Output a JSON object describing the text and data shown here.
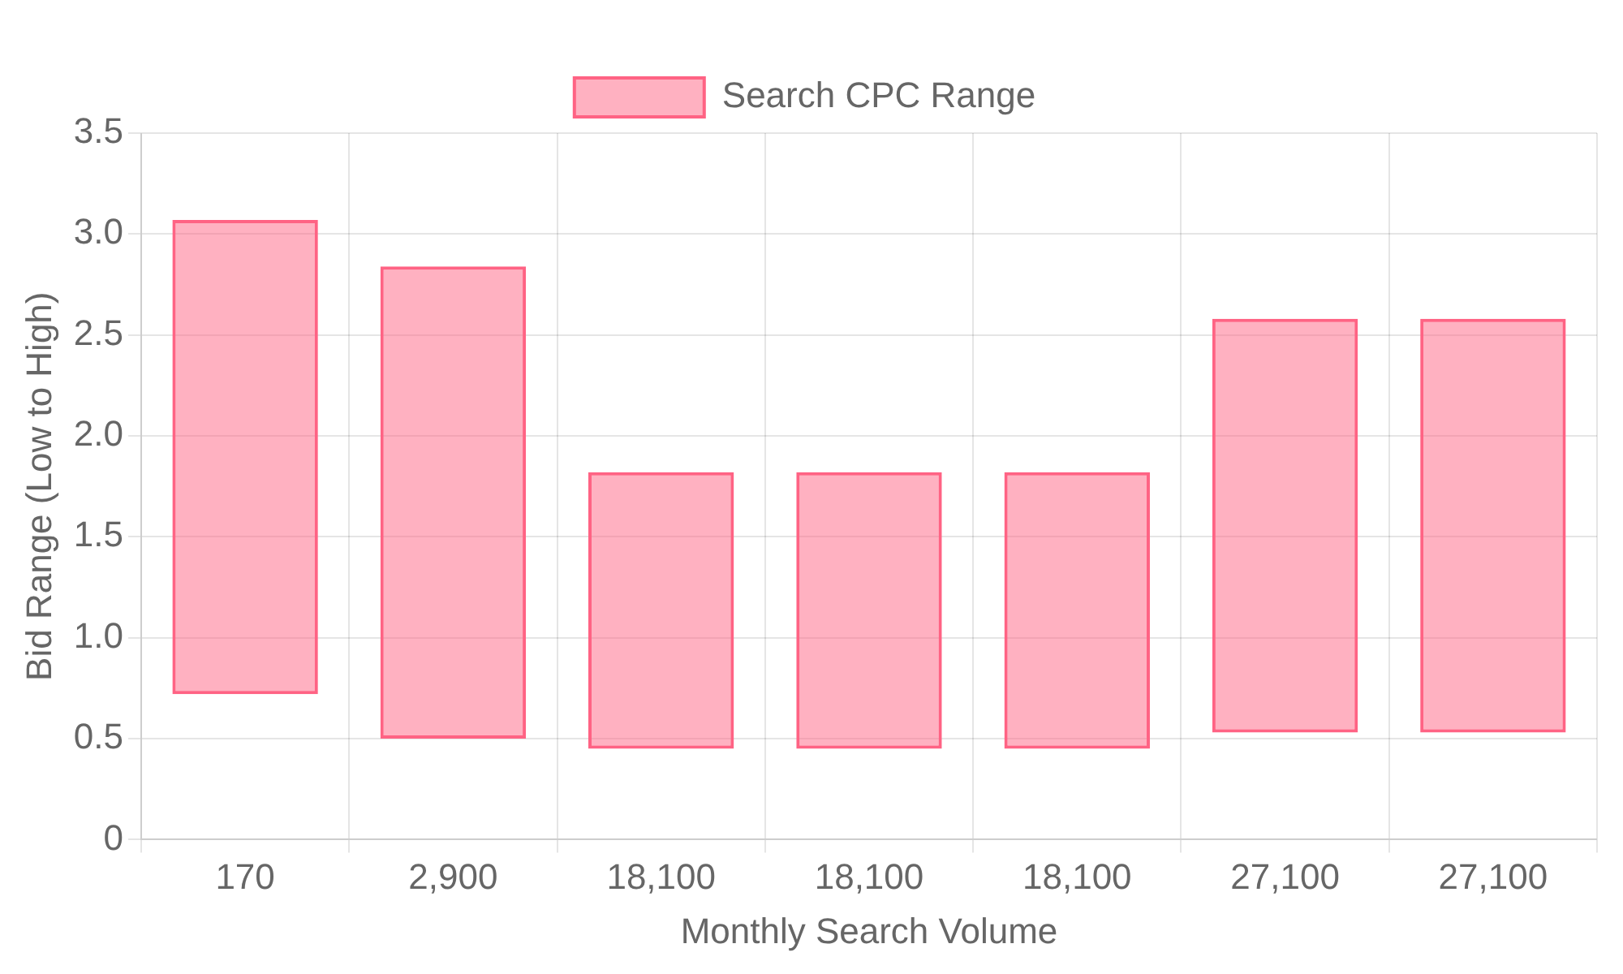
{
  "chart_data": {
    "type": "bar",
    "xlabel": "Monthly Search Volume",
    "ylabel": "Bid Range (Low to High)",
    "categories": [
      "170",
      "2,900",
      "18,100",
      "18,100",
      "18,100",
      "27,100",
      "27,100"
    ],
    "series": [
      {
        "name": "Search CPC Range",
        "color": "#ff6384",
        "values": [
          2.35,
          2.34,
          1.37,
          1.37,
          1.37,
          2.05,
          2.05
        ],
        "base": [
          0.72,
          0.5,
          0.45,
          0.45,
          0.45,
          0.53,
          0.53
        ]
      }
    ],
    "ylim": [
      0,
      3.5
    ],
    "yticks": [
      0,
      {
        "value": 0.5,
        "label": "0.5"
      },
      {
        "value": 1,
        "label": "1.0"
      },
      {
        "value": 1.5,
        "label": "1.5"
      },
      {
        "value": 2,
        "label": "2.0"
      },
      {
        "value": 2.5,
        "label": "2.5"
      },
      {
        "value": 3,
        "label": "3.0"
      },
      {
        "value": 3.5,
        "label": "3.5"
      }
    ],
    "grid": true,
    "legend": "top"
  }
}
